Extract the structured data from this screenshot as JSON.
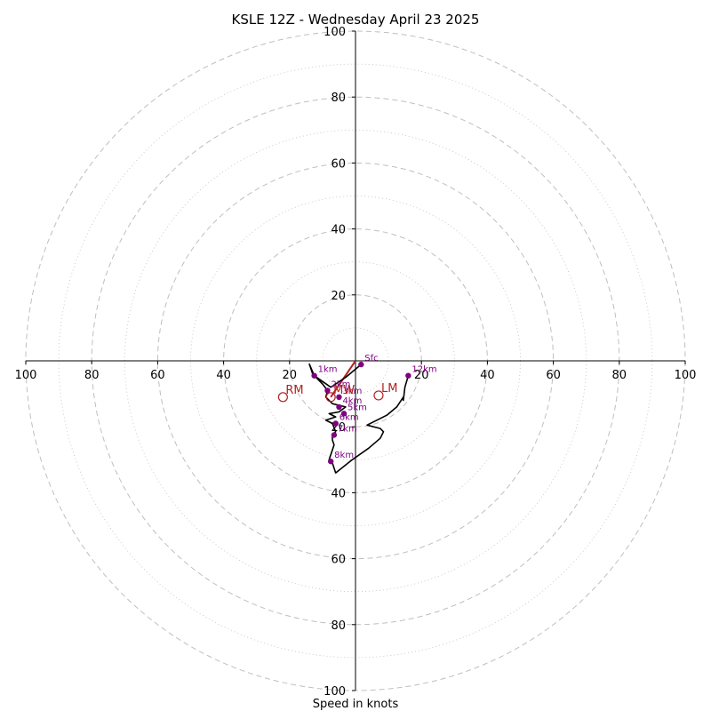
{
  "chart_data": {
    "type": "hodograph",
    "title": "KSLE 12Z - Wednesday April 23 2025",
    "xlabel": "Speed in knots",
    "units": "knots",
    "max_speed": 100,
    "ring_labels": [
      20,
      40,
      60,
      80,
      100
    ],
    "axis_tick_labels": [
      "100",
      "80",
      "60",
      "40",
      "20",
      "20",
      "40",
      "60",
      "80",
      "100"
    ],
    "rings_major": [
      20,
      40,
      60,
      80,
      100
    ],
    "rings_minor": [
      10,
      30,
      50,
      70,
      90
    ],
    "hodograph_trace": [
      [
        1.7,
        -1.1
      ],
      [
        -3.0,
        -5.0
      ],
      [
        -7.5,
        -8.0
      ],
      [
        -12.5,
        -4.5
      ],
      [
        -14.0,
        -1.0
      ],
      [
        -13.0,
        -4.0
      ],
      [
        -10.0,
        -7.0
      ],
      [
        -8.5,
        -9.0
      ],
      [
        -9.0,
        -11.0
      ],
      [
        -7.0,
        -13.0
      ],
      [
        -3.0,
        -14.0
      ],
      [
        -5.0,
        -15.5
      ],
      [
        -8.0,
        -16.0
      ],
      [
        -6.0,
        -17.0
      ],
      [
        -9.0,
        -18.0
      ],
      [
        -7.0,
        -19.0
      ],
      [
        -6.0,
        -21.5
      ],
      [
        -7.0,
        -22.5
      ],
      [
        -7.0,
        -24.0
      ],
      [
        -6.5,
        -25.5
      ],
      [
        -8.0,
        -30.0
      ],
      [
        -7.0,
        -31.0
      ],
      [
        -6.0,
        -34.0
      ],
      [
        -1.0,
        -30.0
      ],
      [
        4.0,
        -26.5
      ],
      [
        7.5,
        -23.5
      ],
      [
        8.5,
        -21.5
      ],
      [
        7.5,
        -20.5
      ],
      [
        3.5,
        -19.5
      ],
      [
        9.5,
        -16.5
      ],
      [
        12.5,
        -14.0
      ],
      [
        14.5,
        -11.0
      ],
      [
        14.5,
        -12.0
      ],
      [
        15.0,
        -8.0
      ],
      [
        16.0,
        -4.5
      ]
    ],
    "height_markers": [
      {
        "label": "Sfc",
        "u": 1.7,
        "v": -1.1
      },
      {
        "label": "1km",
        "u": -12.5,
        "v": -4.5
      },
      {
        "label": "2km",
        "u": -8.5,
        "v": -9.0
      },
      {
        "label": "3km",
        "u": -5.0,
        "v": -11.0
      },
      {
        "label": "4km",
        "u": -5.0,
        "v": -14.0
      },
      {
        "label": "5km",
        "u": -3.5,
        "v": -16.0
      },
      {
        "label": "6km",
        "u": -6.0,
        "v": -19.0
      },
      {
        "label": "7km",
        "u": -6.5,
        "v": -22.5
      },
      {
        "label": "8km",
        "u": -7.5,
        "v": -30.5
      },
      {
        "label": "12km",
        "u": 16.0,
        "v": -4.5
      }
    ],
    "storm_motions": [
      {
        "label": "RM",
        "u": -22.0,
        "v": -11.0
      },
      {
        "label": "LM",
        "u": 7.0,
        "v": -10.5
      },
      {
        "label": "MW",
        "u": -7.5,
        "v": -11.0
      }
    ],
    "mean_wind_vector": {
      "u": -7.5,
      "v": -11.0
    },
    "colors": {
      "trace": "#000000",
      "height_markers": "#800080",
      "storm_motion": "#b22222",
      "grid": "#bfbfbf"
    },
    "grid": true
  }
}
